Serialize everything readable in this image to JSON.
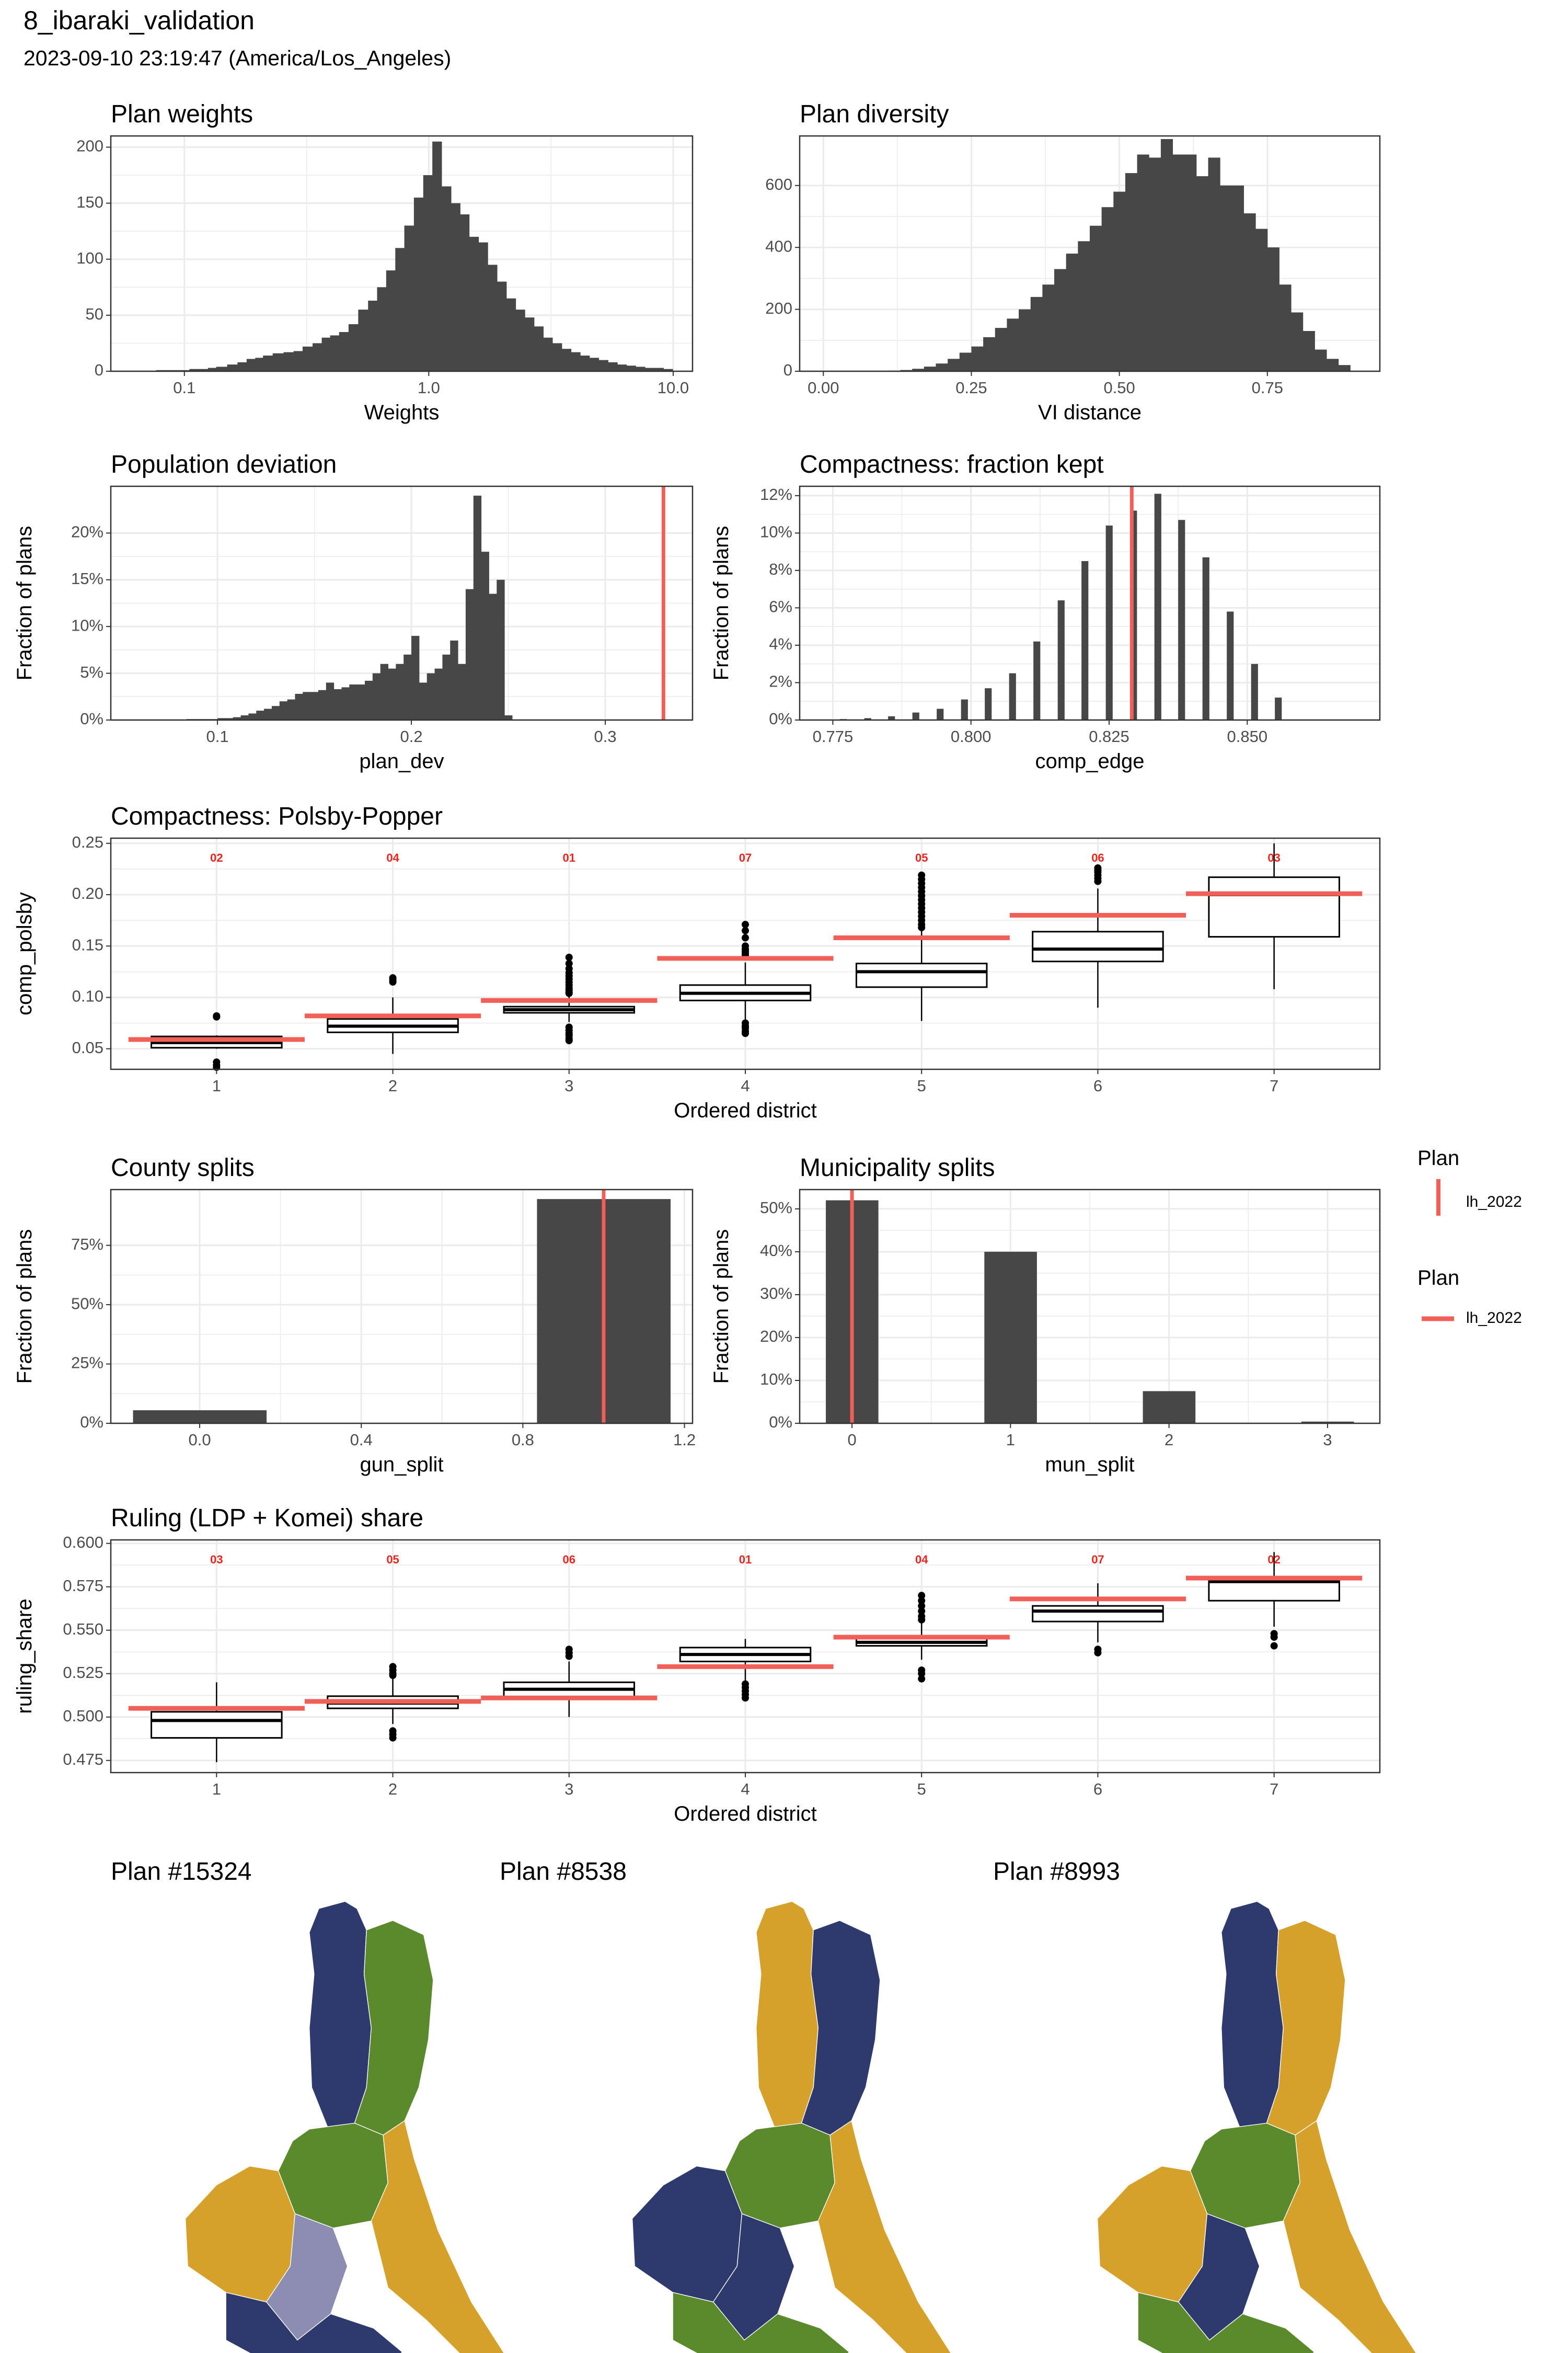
{
  "header": {
    "title": "8_ibaraki_validation",
    "subtitle": "2023-09-10 23:19:47 (America/Los_Angeles)"
  },
  "colors": {
    "bar": "#474747",
    "enacted": "#F16058",
    "grid": "#EBEBEB",
    "panel_border": "#333333",
    "label_red": "#E8261F",
    "district_navy": "#2E3A6E",
    "district_green": "#5A8A2C",
    "district_gold": "#D6A12A",
    "district_lavender": "#8D8DB4"
  },
  "legend": {
    "block1": {
      "title": "Plan",
      "label": "lh_2022",
      "key": "vertical-line"
    },
    "block2": {
      "title": "Plan",
      "label": "lh_2022",
      "key": "horizontal-line"
    }
  },
  "chart_data": [
    {
      "id": "plan_weights",
      "type": "bar",
      "title": "Plan weights",
      "xlabel": "Weights",
      "ylabel": "",
      "x_scale": "log10",
      "xlim": [
        0.05,
        12
      ],
      "ylim": [
        0,
        210
      ],
      "x_ticks": [
        0.1,
        1.0,
        10.0
      ],
      "x_tick_labels": [
        "0.1",
        "1.0",
        "10.0"
      ],
      "y_ticks": [
        0,
        50,
        100,
        150,
        200
      ],
      "y_tick_labels": [
        "0",
        "50",
        "100",
        "150",
        "200"
      ],
      "x": [
        0.08,
        0.09,
        0.1,
        0.11,
        0.12,
        0.13,
        0.14,
        0.16,
        0.17,
        0.19,
        0.2,
        0.22,
        0.24,
        0.27,
        0.29,
        0.32,
        0.35,
        0.38,
        0.41,
        0.45,
        0.49,
        0.54,
        0.59,
        0.64,
        0.7,
        0.76,
        0.83,
        0.91,
        0.99,
        1.08,
        1.18,
        1.29,
        1.4,
        1.53,
        1.67,
        1.82,
        1.99,
        2.17,
        2.37,
        2.58,
        2.82,
        3.07,
        3.35,
        3.66,
        3.99,
        4.35,
        4.75,
        5.18,
        5.66,
        6.17,
        6.73,
        7.34,
        8.01,
        8.74,
        9.54
      ],
      "values": [
        1,
        1,
        1,
        2,
        2,
        3,
        4,
        6,
        8,
        11,
        12,
        14,
        16,
        17,
        18,
        22,
        25,
        30,
        32,
        35,
        42,
        55,
        63,
        75,
        90,
        110,
        130,
        155,
        175,
        205,
        165,
        150,
        140,
        120,
        115,
        95,
        80,
        65,
        55,
        48,
        40,
        30,
        25,
        20,
        17,
        14,
        12,
        10,
        8,
        6,
        5,
        4,
        3,
        3,
        2
      ]
    },
    {
      "id": "plan_diversity",
      "type": "bar",
      "title": "Plan diversity",
      "xlabel": "VI distance",
      "ylabel": "",
      "xlim": [
        -0.04,
        0.94
      ],
      "ylim": [
        0,
        760
      ],
      "x_ticks": [
        0.0,
        0.25,
        0.5,
        0.75
      ],
      "x_tick_labels": [
        "0.00",
        "0.25",
        "0.50",
        "0.75"
      ],
      "y_ticks": [
        0,
        200,
        400,
        600
      ],
      "y_tick_labels": [
        "0",
        "200",
        "400",
        "600"
      ],
      "x": [
        0.12,
        0.14,
        0.16,
        0.18,
        0.2,
        0.22,
        0.24,
        0.26,
        0.28,
        0.3,
        0.32,
        0.34,
        0.36,
        0.38,
        0.4,
        0.42,
        0.44,
        0.46,
        0.48,
        0.5,
        0.52,
        0.54,
        0.56,
        0.58,
        0.6,
        0.62,
        0.64,
        0.66,
        0.68,
        0.7,
        0.72,
        0.74,
        0.76,
        0.78,
        0.8,
        0.82,
        0.84,
        0.86,
        0.88
      ],
      "values": [
        2,
        4,
        8,
        15,
        25,
        40,
        60,
        80,
        110,
        140,
        170,
        200,
        240,
        280,
        330,
        380,
        420,
        470,
        530,
        580,
        640,
        700,
        690,
        750,
        700,
        700,
        630,
        690,
        600,
        600,
        510,
        460,
        400,
        280,
        190,
        130,
        70,
        40,
        20
      ]
    },
    {
      "id": "population_deviation",
      "type": "bar",
      "title": "Population deviation",
      "xlabel": "plan_dev",
      "ylabel": "Fraction of plans",
      "xlim": [
        0.045,
        0.345
      ],
      "ylim": [
        0,
        0.25
      ],
      "x_ticks": [
        0.1,
        0.2,
        0.3
      ],
      "x_tick_labels": [
        "0.1",
        "0.2",
        "0.3"
      ],
      "y_ticks": [
        0,
        0.05,
        0.1,
        0.15,
        0.2
      ],
      "y_tick_labels": [
        "0%",
        "5%",
        "10%",
        "15%",
        "20%"
      ],
      "bin_width": 0.004,
      "x": [
        0.082,
        0.086,
        0.09,
        0.094,
        0.098,
        0.102,
        0.106,
        0.11,
        0.114,
        0.118,
        0.122,
        0.126,
        0.13,
        0.134,
        0.138,
        0.142,
        0.146,
        0.15,
        0.154,
        0.158,
        0.162,
        0.166,
        0.17,
        0.174,
        0.178,
        0.182,
        0.186,
        0.19,
        0.194,
        0.198,
        0.202,
        0.206,
        0.21,
        0.214,
        0.218,
        0.222,
        0.226,
        0.23,
        0.234,
        0.238,
        0.242,
        0.246,
        0.25
      ],
      "values": [
        0.0005,
        0.001,
        0.001,
        0.001,
        0.001,
        0.002,
        0.002,
        0.003,
        0.005,
        0.007,
        0.01,
        0.012,
        0.015,
        0.02,
        0.022,
        0.028,
        0.03,
        0.03,
        0.032,
        0.04,
        0.033,
        0.035,
        0.038,
        0.038,
        0.042,
        0.05,
        0.06,
        0.055,
        0.06,
        0.07,
        0.09,
        0.04,
        0.05,
        0.055,
        0.07,
        0.085,
        0.06,
        0.14,
        0.24,
        0.18,
        0.135,
        0.15,
        0.005
      ],
      "reference_x": 0.33
    },
    {
      "id": "compactness_fraction_kept",
      "type": "bar",
      "title": "Compactness: fraction kept",
      "xlabel": "comp_edge",
      "ylabel": "Fraction of plans",
      "xlim": [
        0.769,
        0.874
      ],
      "ylim": [
        0,
        0.125
      ],
      "x_ticks": [
        0.775,
        0.8,
        0.825,
        0.85
      ],
      "x_tick_labels": [
        "0.775",
        "0.800",
        "0.825",
        "0.850"
      ],
      "y_ticks": [
        0,
        0.02,
        0.04,
        0.06,
        0.08,
        0.1,
        0.12
      ],
      "y_tick_labels": [
        "0%",
        "2%",
        "4%",
        "6%",
        "8%",
        "10%",
        "12%"
      ],
      "bin_width": 0.0012,
      "x": [
        0.7769,
        0.7813,
        0.7856,
        0.79,
        0.7944,
        0.7988,
        0.8031,
        0.8075,
        0.8119,
        0.8163,
        0.8206,
        0.825,
        0.8294,
        0.8338,
        0.8381,
        0.8425,
        0.8469,
        0.8513,
        0.8556
      ],
      "values": [
        0.0005,
        0.001,
        0.002,
        0.004,
        0.006,
        0.011,
        0.017,
        0.025,
        0.042,
        0.064,
        0.085,
        0.104,
        0.112,
        0.121,
        0.107,
        0.087,
        0.058,
        0.03,
        0.012
      ],
      "reference_x": 0.8291
    },
    {
      "id": "compactness_polsby_popper",
      "type": "boxplot",
      "title": "Compactness: Polsby-Popper",
      "xlabel": "Ordered district",
      "ylabel": "comp_polsby",
      "ylim": [
        0.03,
        0.255
      ],
      "categories": [
        "1",
        "2",
        "3",
        "4",
        "5",
        "6",
        "7"
      ],
      "y_ticks": [
        0.05,
        0.1,
        0.15,
        0.2,
        0.25
      ],
      "y_tick_labels": [
        "0.05",
        "0.10",
        "0.15",
        "0.20",
        "0.25"
      ],
      "boxes": [
        {
          "q1": 0.051,
          "median": 0.056,
          "q3": 0.062,
          "whisker_low": 0.05,
          "whisker_high": 0.063,
          "outliers": [
            0.082,
            0.081,
            0.037,
            0.034,
            0.032
          ]
        },
        {
          "q1": 0.066,
          "median": 0.072,
          "q3": 0.079,
          "whisker_low": 0.045,
          "whisker_high": 0.1,
          "outliers": [
            0.119,
            0.117,
            0.115
          ]
        },
        {
          "q1": 0.085,
          "median": 0.088,
          "q3": 0.091,
          "whisker_low": 0.076,
          "whisker_high": 0.101,
          "outliers": [
            0.139,
            0.133,
            0.128,
            0.124,
            0.121,
            0.118,
            0.115,
            0.112,
            0.109,
            0.107,
            0.105,
            0.104,
            0.071,
            0.068,
            0.065,
            0.063,
            0.06,
            0.058
          ]
        },
        {
          "q1": 0.097,
          "median": 0.104,
          "q3": 0.112,
          "whisker_low": 0.075,
          "whisker_high": 0.134,
          "outliers": [
            0.171,
            0.165,
            0.158,
            0.15,
            0.147,
            0.145,
            0.143,
            0.141,
            0.075,
            0.072,
            0.07,
            0.067,
            0.065
          ]
        },
        {
          "q1": 0.11,
          "median": 0.125,
          "q3": 0.133,
          "whisker_low": 0.077,
          "whisker_high": 0.166,
          "outliers": [
            0.219,
            0.215,
            0.211,
            0.207,
            0.203,
            0.199,
            0.195,
            0.191,
            0.187,
            0.183,
            0.179,
            0.175,
            0.171,
            0.168
          ]
        },
        {
          "q1": 0.135,
          "median": 0.147,
          "q3": 0.164,
          "whisker_low": 0.09,
          "whisker_high": 0.206,
          "outliers": [
            0.226,
            0.224,
            0.222,
            0.219,
            0.216,
            0.213
          ]
        },
        {
          "q1": 0.159,
          "median": 0.2,
          "q3": 0.217,
          "whisker_low": 0.108,
          "whisker_high": 0.25,
          "outliers": []
        }
      ],
      "enacted": [
        0.059,
        0.082,
        0.097,
        0.138,
        0.158,
        0.18,
        0.201
      ],
      "enacted_labels": [
        "02",
        "04",
        "01",
        "07",
        "05",
        "06",
        "03"
      ]
    },
    {
      "id": "county_splits",
      "type": "bar",
      "title": "County splits",
      "xlabel": "gun_split",
      "ylabel": "Fraction of plans",
      "xlim": [
        -0.22,
        1.22
      ],
      "ylim": [
        0,
        0.985
      ],
      "x_ticks": [
        0,
        0.4,
        0.8,
        1.2
      ],
      "x_tick_labels": [
        "0.0",
        "0.4",
        "0.8",
        "1.2"
      ],
      "y_ticks": [
        0,
        0.25,
        0.5,
        0.75
      ],
      "y_tick_labels": [
        "0%",
        "25%",
        "50%",
        "75%"
      ],
      "bin_width": 0.33,
      "x": [
        0,
        1
      ],
      "values": [
        0.055,
        0.945
      ],
      "reference_x": 1
    },
    {
      "id": "municipality_splits",
      "type": "bar",
      "title": "Municipality splits",
      "xlabel": "mun_split",
      "ylabel": "Fraction of plans",
      "xlim": [
        -0.33,
        3.33
      ],
      "ylim": [
        0,
        0.545
      ],
      "x_ticks": [
        0,
        1,
        2,
        3
      ],
      "x_tick_labels": [
        "0",
        "1",
        "2",
        "3"
      ],
      "y_ticks": [
        0,
        0.1,
        0.2,
        0.3,
        0.4,
        0.5
      ],
      "y_tick_labels": [
        "0%",
        "10%",
        "20%",
        "30%",
        "40%",
        "50%"
      ],
      "bin_width": 0.33,
      "x": [
        0,
        1,
        2,
        3
      ],
      "values": [
        0.52,
        0.4,
        0.075,
        0.004
      ],
      "reference_x": 0
    },
    {
      "id": "ruling_share",
      "type": "boxplot",
      "title": "Ruling (LDP + Komei) share",
      "xlabel": "Ordered district",
      "ylabel": "ruling_share",
      "ylim": [
        0.468,
        0.602
      ],
      "categories": [
        "1",
        "2",
        "3",
        "4",
        "5",
        "6",
        "7"
      ],
      "y_ticks": [
        0.475,
        0.5,
        0.525,
        0.55,
        0.575,
        0.6
      ],
      "y_tick_labels": [
        "0.475",
        "0.500",
        "0.525",
        "0.550",
        "0.575",
        "0.600"
      ],
      "boxes": [
        {
          "q1": 0.488,
          "median": 0.498,
          "q3": 0.503,
          "whisker_low": 0.474,
          "whisker_high": 0.52,
          "outliers": []
        },
        {
          "q1": 0.505,
          "median": 0.508,
          "q3": 0.512,
          "whisker_low": 0.496,
          "whisker_high": 0.522,
          "outliers": [
            0.529,
            0.527,
            0.525,
            0.524,
            0.492,
            0.49,
            0.488
          ]
        },
        {
          "q1": 0.511,
          "median": 0.516,
          "q3": 0.52,
          "whisker_low": 0.5,
          "whisker_high": 0.532,
          "outliers": [
            0.539,
            0.537,
            0.535
          ]
        },
        {
          "q1": 0.532,
          "median": 0.536,
          "q3": 0.54,
          "whisker_low": 0.521,
          "whisker_high": 0.545,
          "outliers": [
            0.519,
            0.517,
            0.515,
            0.513,
            0.511
          ]
        },
        {
          "q1": 0.541,
          "median": 0.543,
          "q3": 0.546,
          "whisker_low": 0.533,
          "whisker_high": 0.554,
          "outliers": [
            0.57,
            0.567,
            0.564,
            0.561,
            0.558,
            0.556,
            0.527,
            0.525,
            0.522
          ]
        },
        {
          "q1": 0.555,
          "median": 0.561,
          "q3": 0.564,
          "whisker_low": 0.543,
          "whisker_high": 0.577,
          "outliers": [
            0.539,
            0.537
          ]
        },
        {
          "q1": 0.567,
          "median": 0.578,
          "q3": 0.579,
          "whisker_low": 0.552,
          "whisker_high": 0.595,
          "outliers": [
            0.548,
            0.546,
            0.541
          ]
        }
      ],
      "enacted": [
        0.505,
        0.509,
        0.511,
        0.529,
        0.546,
        0.568,
        0.58
      ],
      "enacted_labels": [
        "03",
        "05",
        "06",
        "01",
        "04",
        "07",
        "02"
      ]
    }
  ],
  "maps": [
    {
      "title": "Plan #15324",
      "districts": [
        "navy",
        "green",
        "green",
        "gold",
        "lavender",
        "navy",
        "gold"
      ]
    },
    {
      "title": "Plan #8538",
      "districts": [
        "gold",
        "navy",
        "green",
        "navy",
        "navy",
        "green",
        "gold"
      ]
    },
    {
      "title": "Plan #8993",
      "districts": [
        "navy",
        "gold",
        "green",
        "gold",
        "navy",
        "green",
        "gold"
      ]
    }
  ]
}
